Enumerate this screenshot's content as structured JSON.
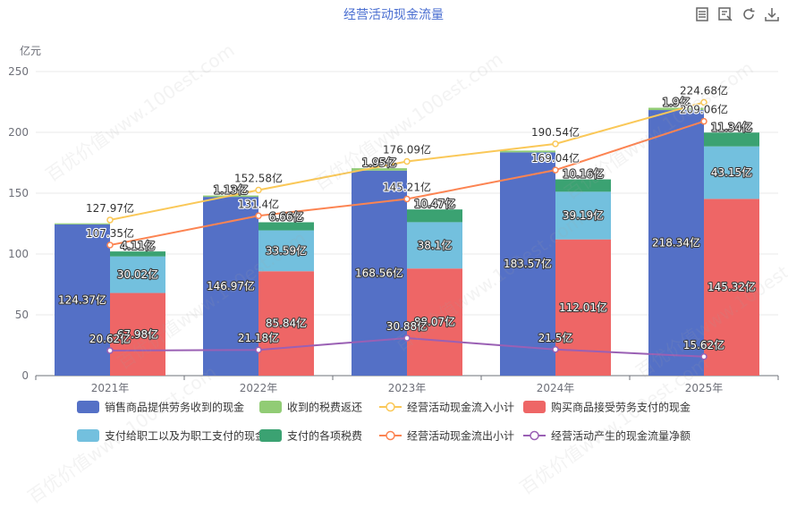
{
  "colors": {
    "sales": "#5470c6",
    "tax_refund": "#91cc75",
    "inflow": "#fac858",
    "purchase": "#ee6666",
    "employee": "#73c0de",
    "taxes": "#3ba272",
    "outflow": "#fc8452",
    "net": "#9a60b4",
    "title": "#4b6fd1",
    "axis_text": "#6e7079",
    "grid": "#e8e8e8"
  },
  "toolbar": {
    "icons": [
      "data-view-icon",
      "image-view-icon",
      "refresh-icon",
      "download-icon"
    ]
  },
  "watermark_text": "百优价值www.100est.com",
  "chart_data": {
    "type": "bar",
    "title": "经营活动现金流量",
    "ylabel": "亿元",
    "ylim": [
      0,
      250
    ],
    "yticks": [
      0,
      50,
      100,
      150,
      200,
      250
    ],
    "grid": true,
    "legend_position": "bottom",
    "value_suffix": "亿",
    "categories": [
      "2021年",
      "2022年",
      "2023年",
      "2024年",
      "2025年"
    ],
    "bar_series": [
      {
        "name": "销售商品提供劳务收到的现金",
        "stack": "inflow",
        "color_key": "sales",
        "values": [
          124.37,
          146.97,
          168.56,
          183.57,
          218.34
        ],
        "labels": [
          "124.37亿",
          "146.97亿",
          "168.56亿",
          "183.57亿",
          "218.34亿"
        ]
      },
      {
        "name": "收到的税费返还",
        "stack": "inflow",
        "color_key": "tax_refund",
        "values": [
          0.85,
          1.13,
          1.95,
          1.44,
          1.9
        ],
        "labels": [
          "",
          "1.13亿",
          "1.95亿",
          "",
          "1.9亿"
        ]
      },
      {
        "name": "购买商品接受劳务支付的现金",
        "stack": "outflow",
        "color_key": "purchase",
        "values": [
          67.98,
          85.84,
          88.07,
          112.01,
          145.32
        ],
        "labels": [
          "67.98亿",
          "85.84亿",
          "88.07亿",
          "112.01亿",
          "145.32亿"
        ]
      },
      {
        "name": "支付给职工以及为职工支付的现金",
        "stack": "outflow",
        "color_key": "employee",
        "values": [
          30.02,
          33.59,
          38.1,
          39.19,
          43.15
        ],
        "labels": [
          "30.02亿",
          "33.59亿",
          "38.1亿",
          "39.19亿",
          "43.15亿"
        ]
      },
      {
        "name": "支付的各项税费",
        "stack": "outflow",
        "color_key": "taxes",
        "values": [
          4.11,
          6.66,
          10.47,
          10.16,
          11.34
        ],
        "labels": [
          "4.11亿",
          "6.66亿",
          "10.47亿",
          "10.16亿",
          "11.34亿"
        ]
      }
    ],
    "line_series": [
      {
        "name": "经营活动现金流入小计",
        "color_key": "inflow",
        "values": [
          127.97,
          152.58,
          176.09,
          190.54,
          224.68
        ],
        "labels": [
          "127.97亿",
          "152.58亿",
          "176.09亿",
          "190.54亿",
          "224.68亿"
        ]
      },
      {
        "name": "经营活动现金流出小计",
        "color_key": "outflow",
        "values": [
          107.35,
          131.4,
          145.21,
          169.04,
          209.06
        ],
        "labels": [
          "107.35亿",
          "131.4亿",
          "145.21亿",
          "169.04亿",
          "209.06亿"
        ]
      },
      {
        "name": "经营活动产生的现金流量净额",
        "color_key": "net",
        "values": [
          20.62,
          21.18,
          30.88,
          21.5,
          15.62
        ],
        "labels": [
          "20.62亿",
          "21.18亿",
          "30.88亿",
          "21.5亿",
          "15.62亿"
        ]
      }
    ],
    "legend": [
      {
        "name": "销售商品提供劳务收到的现金",
        "kind": "bar",
        "color_key": "sales"
      },
      {
        "name": "收到的税费返还",
        "kind": "bar",
        "color_key": "tax_refund"
      },
      {
        "name": "经营活动现金流入小计",
        "kind": "line",
        "color_key": "inflow"
      },
      {
        "name": "购买商品接受劳务支付的现金",
        "kind": "bar",
        "color_key": "purchase"
      },
      {
        "name": "支付给职工以及为职工支付的现金",
        "kind": "bar",
        "color_key": "employee"
      },
      {
        "name": "支付的各项税费",
        "kind": "bar",
        "color_key": "taxes"
      },
      {
        "name": "经营活动现金流出小计",
        "kind": "line",
        "color_key": "outflow"
      },
      {
        "name": "经营活动产生的现金流量净额",
        "kind": "line",
        "color_key": "net"
      }
    ]
  }
}
